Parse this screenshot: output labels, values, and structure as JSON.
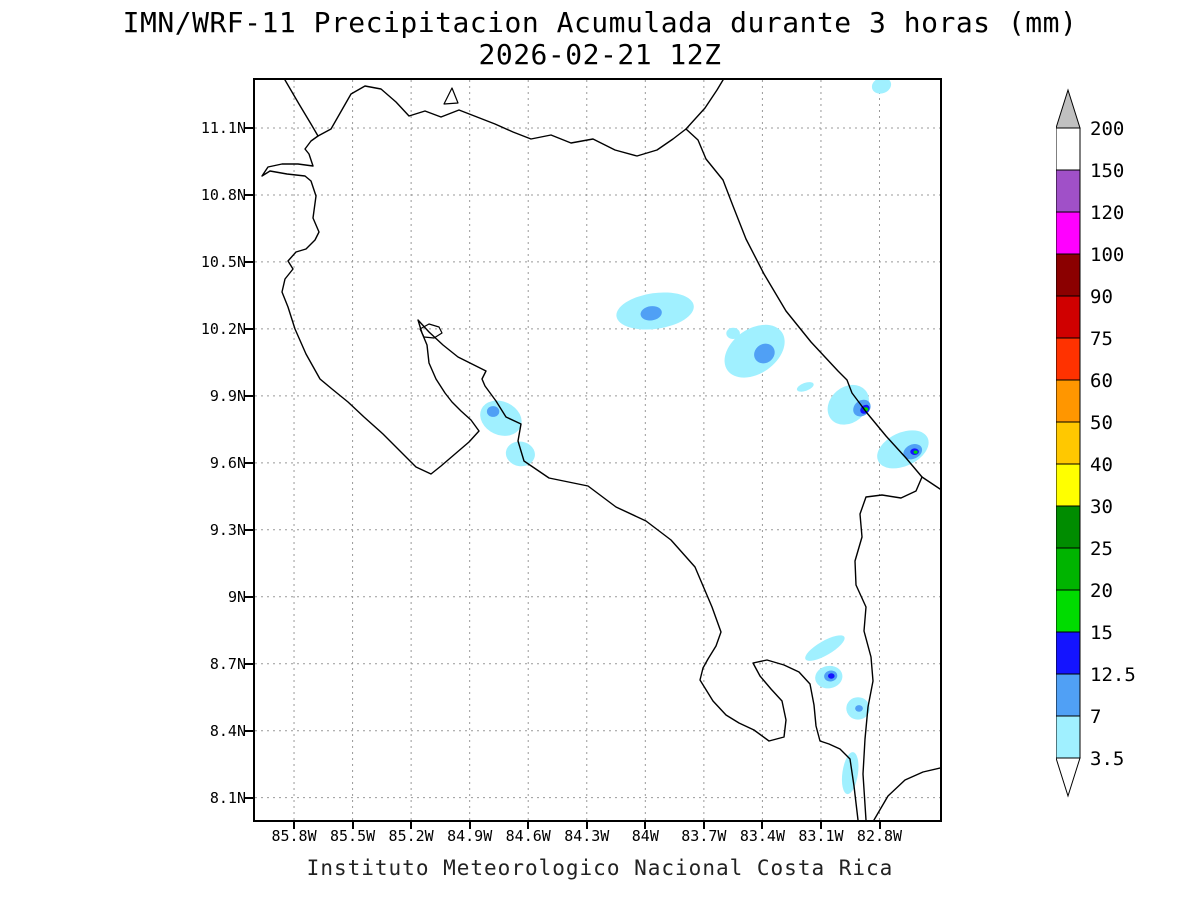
{
  "header": {
    "title": "IMN/WRF-11 Precipitacion Acumulada durante 3 horas (mm)",
    "subtitle": "2026-02-21 12Z"
  },
  "footer": {
    "credit": "Instituto Meteorologico Nacional Costa Rica"
  },
  "map": {
    "region": "Costa Rica",
    "extent": {
      "lon_west": 86.0,
      "lon_east": 82.49,
      "lat_north": 11.315,
      "lat_south": 8.0
    },
    "lat_ticks": [
      "11.1N",
      "10.8N",
      "10.5N",
      "10.2N",
      "9.9N",
      "9.6N",
      "9.3N",
      "9N",
      "8.7N",
      "8.4N",
      "8.1N"
    ],
    "lon_ticks": [
      "85.8W",
      "85.5W",
      "85.2W",
      "84.9W",
      "84.6W",
      "84.3W",
      "84W",
      "83.7W",
      "83.4W",
      "83.1W",
      "82.8W"
    ],
    "grid": true
  },
  "colorbar": {
    "tick_labels": [
      "200",
      "150",
      "120",
      "100",
      "90",
      "75",
      "60",
      "50",
      "40",
      "30",
      "25",
      "20",
      "15",
      "12.5",
      "7",
      "3.5"
    ],
    "band_colors_top_to_bottom": [
      "#FFFFFF",
      "#A050C8",
      "#FF00FF",
      "#8B0000",
      "#D00000",
      "#FF3200",
      "#FF9600",
      "#FFC800",
      "#FFFF00",
      "#008C00",
      "#00B400",
      "#00DC00",
      "#1414FF",
      "#50A0F5",
      "#A0F0FF"
    ],
    "arrow_top_color": "#C0C0C0",
    "arrow_bottom_color": "#FFFFFF"
  },
  "chart_data": {
    "type": "heatmap",
    "subtype": "filled-contour-precipitation-map",
    "title": "IMN/WRF-11 Precipitacion Acumulada durante 3 horas (mm)",
    "valid_time": "2026-02-21 12Z",
    "units": "mm",
    "region": "Costa Rica",
    "lon_range_w": [
      86.0,
      82.49
    ],
    "lat_range_n": [
      8.0,
      11.315
    ],
    "levels_mm": [
      3.5,
      7,
      12.5,
      15,
      20,
      25,
      30,
      40,
      50,
      60,
      75,
      90,
      100,
      120,
      150,
      200
    ],
    "level_colors": {
      "3.5": "#A0F0FF",
      "7": "#50A0F5",
      "12.5": "#1414FF",
      "15": "#00DC00",
      "20": "#00B400",
      "25": "#008C00",
      "30": "#FFFF00",
      "40": "#FFC800",
      "50": "#FF9600",
      "60": "#FF3200",
      "75": "#D00000",
      "90": "#8B0000",
      "100": "#FF00FF",
      "120": "#A050C8",
      "150": "#FFFFFF",
      "200": "#C0C0C0"
    },
    "precipitation_cells": [
      {
        "lon_w": 83.95,
        "lat_n": 10.28,
        "rx_deg": 0.2,
        "ry_deg": 0.08,
        "rot_deg": -8,
        "level_mm": 3.5
      },
      {
        "lon_w": 83.97,
        "lat_n": 10.27,
        "rx_deg": 0.055,
        "ry_deg": 0.032,
        "rot_deg": -8,
        "level_mm": 7
      },
      {
        "lon_w": 83.55,
        "lat_n": 10.18,
        "rx_deg": 0.035,
        "ry_deg": 0.025,
        "rot_deg": 0,
        "level_mm": 3.5
      },
      {
        "lon_w": 83.44,
        "lat_n": 10.1,
        "rx_deg": 0.17,
        "ry_deg": 0.1,
        "rot_deg": -35,
        "level_mm": 3.5
      },
      {
        "lon_w": 83.39,
        "lat_n": 10.09,
        "rx_deg": 0.055,
        "ry_deg": 0.042,
        "rot_deg": -35,
        "level_mm": 7
      },
      {
        "lon_w": 83.18,
        "lat_n": 9.94,
        "rx_deg": 0.045,
        "ry_deg": 0.018,
        "rot_deg": -20,
        "level_mm": 3.5
      },
      {
        "lon_w": 82.96,
        "lat_n": 9.86,
        "rx_deg": 0.115,
        "ry_deg": 0.08,
        "rot_deg": -40,
        "level_mm": 3.5
      },
      {
        "lon_w": 82.89,
        "lat_n": 9.845,
        "rx_deg": 0.048,
        "ry_deg": 0.034,
        "rot_deg": -40,
        "level_mm": 7
      },
      {
        "lon_w": 82.875,
        "lat_n": 9.84,
        "rx_deg": 0.026,
        "ry_deg": 0.018,
        "rot_deg": -40,
        "level_mm": 12.5
      },
      {
        "lon_w": 82.87,
        "lat_n": 9.84,
        "rx_deg": 0.013,
        "ry_deg": 0.009,
        "rot_deg": 0,
        "level_mm": 15
      },
      {
        "lon_w": 82.68,
        "lat_n": 9.66,
        "rx_deg": 0.14,
        "ry_deg": 0.075,
        "rot_deg": -25,
        "level_mm": 3.5
      },
      {
        "lon_w": 82.63,
        "lat_n": 9.65,
        "rx_deg": 0.05,
        "ry_deg": 0.032,
        "rot_deg": -25,
        "level_mm": 7
      },
      {
        "lon_w": 82.62,
        "lat_n": 9.65,
        "rx_deg": 0.022,
        "ry_deg": 0.015,
        "rot_deg": 0,
        "level_mm": 12.5
      },
      {
        "lon_w": 82.615,
        "lat_n": 9.648,
        "rx_deg": 0.01,
        "ry_deg": 0.007,
        "rot_deg": 0,
        "level_mm": 15
      },
      {
        "lon_w": 84.74,
        "lat_n": 9.8,
        "rx_deg": 0.11,
        "ry_deg": 0.075,
        "rot_deg": 25,
        "level_mm": 3.5
      },
      {
        "lon_w": 84.78,
        "lat_n": 9.83,
        "rx_deg": 0.032,
        "ry_deg": 0.024,
        "rot_deg": 0,
        "level_mm": 7
      },
      {
        "lon_w": 84.64,
        "lat_n": 9.64,
        "rx_deg": 0.075,
        "ry_deg": 0.055,
        "rot_deg": 10,
        "level_mm": 3.5
      },
      {
        "lon_w": 83.08,
        "lat_n": 8.77,
        "rx_deg": 0.115,
        "ry_deg": 0.032,
        "rot_deg": -30,
        "level_mm": 3.5
      },
      {
        "lon_w": 83.06,
        "lat_n": 8.64,
        "rx_deg": 0.07,
        "ry_deg": 0.05,
        "rot_deg": -10,
        "level_mm": 3.5
      },
      {
        "lon_w": 83.05,
        "lat_n": 8.645,
        "rx_deg": 0.034,
        "ry_deg": 0.024,
        "rot_deg": -10,
        "level_mm": 7
      },
      {
        "lon_w": 83.047,
        "lat_n": 8.645,
        "rx_deg": 0.017,
        "ry_deg": 0.012,
        "rot_deg": 0,
        "level_mm": 12.5
      },
      {
        "lon_w": 82.91,
        "lat_n": 8.5,
        "rx_deg": 0.06,
        "ry_deg": 0.05,
        "rot_deg": 0,
        "level_mm": 3.5
      },
      {
        "lon_w": 82.905,
        "lat_n": 8.5,
        "rx_deg": 0.02,
        "ry_deg": 0.015,
        "rot_deg": 0,
        "level_mm": 7
      },
      {
        "lon_w": 82.95,
        "lat_n": 8.21,
        "rx_deg": 0.04,
        "ry_deg": 0.095,
        "rot_deg": 8,
        "level_mm": 3.5
      },
      {
        "lon_w": 82.79,
        "lat_n": 11.29,
        "rx_deg": 0.05,
        "ry_deg": 0.035,
        "rot_deg": -20,
        "level_mm": 3.5
      }
    ]
  }
}
